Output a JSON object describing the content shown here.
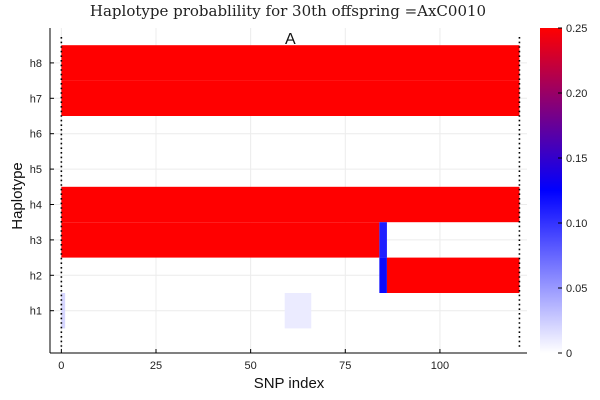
{
  "chart_data": {
    "type": "heatmap",
    "title": "Haplotype probablility for 30th offspring =AxC0010",
    "xlabel": "SNP index",
    "ylabel": "Haplotype",
    "annotation": "A",
    "x_ticks": [
      0,
      25,
      50,
      75,
      100
    ],
    "y_categories": [
      "h1",
      "h2",
      "h3",
      "h4",
      "h5",
      "h6",
      "h7",
      "h8"
    ],
    "xlim": [
      -3,
      123
    ],
    "snp_range": [
      0,
      121
    ],
    "boundary_lines_x": [
      0,
      121
    ],
    "colorbar": {
      "range": [
        0,
        0.25
      ],
      "ticks": [
        "0",
        "0.05",
        "0.10",
        "0.15",
        "0.20",
        "0.25"
      ],
      "colors": [
        "#ffffff",
        "#0000ff",
        "#ff0000"
      ]
    },
    "segments": [
      {
        "haplotype": "h8",
        "x_start": 0,
        "x_end": 121,
        "value": 0.25
      },
      {
        "haplotype": "h7",
        "x_start": 0,
        "x_end": 121,
        "value": 0.25
      },
      {
        "haplotype": "h4",
        "x_start": 0,
        "x_end": 121,
        "value": 0.25
      },
      {
        "haplotype": "h3",
        "x_start": 0,
        "x_end": 84,
        "value": 0.25
      },
      {
        "haplotype": "h3",
        "x_start": 84,
        "x_end": 86,
        "value": 0.11
      },
      {
        "haplotype": "h2",
        "x_start": 84,
        "x_end": 86,
        "value": 0.12
      },
      {
        "haplotype": "h2",
        "x_start": 86,
        "x_end": 121,
        "value": 0.25
      },
      {
        "haplotype": "h1",
        "x_start": 59,
        "x_end": 66,
        "value": 0.01
      },
      {
        "haplotype": "h1",
        "x_start": 0,
        "x_end": 1,
        "value": 0.02
      }
    ]
  }
}
